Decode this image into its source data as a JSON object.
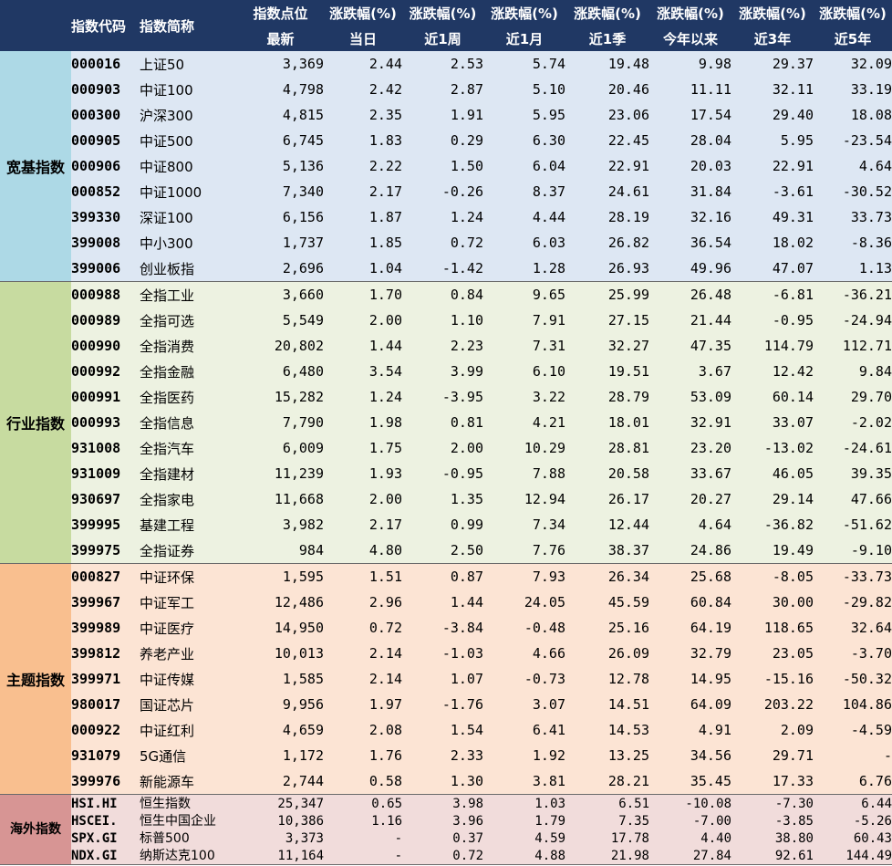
{
  "header": {
    "row1": [
      "指数代码",
      "指数简称",
      "指数点位",
      "涨跌幅(%)",
      "涨跌幅(%)",
      "涨跌幅(%)",
      "涨跌幅(%)",
      "涨跌幅(%)",
      "涨跌幅(%)",
      "涨跌幅(%)"
    ],
    "row2": [
      "最新",
      "当日",
      "近1周",
      "近1月",
      "近1季",
      "今年以来",
      "近3年",
      "近5年"
    ]
  },
  "colors": {
    "header_bg": "#203864",
    "group1_label": "#add9e6",
    "group1_row": "#dde7f3",
    "group2_label": "#c7dba0",
    "group2_row": "#edf2e1",
    "group3_label": "#f9bf8f",
    "group3_row": "#fce4d4",
    "group4_label": "#d79594",
    "group4_row": "#f1dcdb"
  },
  "groups": [
    {
      "label": "宽基指数",
      "rows": [
        [
          "000016",
          "上证50",
          "3,369",
          "2.44",
          "2.53",
          "5.74",
          "19.48",
          "9.98",
          "29.37",
          "32.09"
        ],
        [
          "000903",
          "中证100",
          "4,798",
          "2.42",
          "2.87",
          "5.10",
          "20.46",
          "11.11",
          "32.11",
          "33.19"
        ],
        [
          "000300",
          "沪深300",
          "4,815",
          "2.35",
          "1.91",
          "5.95",
          "23.06",
          "17.54",
          "29.40",
          "18.08"
        ],
        [
          "000905",
          "中证500",
          "6,745",
          "1.83",
          "0.29",
          "6.30",
          "22.45",
          "28.04",
          "5.95",
          "-23.54"
        ],
        [
          "000906",
          "中证800",
          "5,136",
          "2.22",
          "1.50",
          "6.04",
          "22.91",
          "20.03",
          "22.91",
          "4.64"
        ],
        [
          "000852",
          "中证1000",
          "7,340",
          "2.17",
          "-0.26",
          "8.37",
          "24.61",
          "31.84",
          "-3.61",
          "-30.52"
        ],
        [
          "399330",
          "深证100",
          "6,156",
          "1.87",
          "1.24",
          "4.44",
          "28.19",
          "32.16",
          "49.31",
          "33.73"
        ],
        [
          "399008",
          "中小300",
          "1,737",
          "1.85",
          "0.72",
          "6.03",
          "26.82",
          "36.54",
          "18.02",
          "-8.36"
        ],
        [
          "399006",
          "创业板指",
          "2,696",
          "1.04",
          "-1.42",
          "1.28",
          "26.93",
          "49.96",
          "47.07",
          "1.13"
        ]
      ]
    },
    {
      "label": "行业指数",
      "rows": [
        [
          "000988",
          "全指工业",
          "3,660",
          "1.70",
          "0.84",
          "9.65",
          "25.99",
          "26.48",
          "-6.81",
          "-36.21"
        ],
        [
          "000989",
          "全指可选",
          "5,549",
          "2.00",
          "1.10",
          "7.91",
          "27.15",
          "21.44",
          "-0.95",
          "-24.94"
        ],
        [
          "000990",
          "全指消费",
          "20,802",
          "1.44",
          "2.23",
          "7.31",
          "32.27",
          "47.35",
          "114.79",
          "112.71"
        ],
        [
          "000992",
          "全指金融",
          "6,480",
          "3.54",
          "3.99",
          "6.10",
          "19.51",
          "3.67",
          "12.42",
          "9.84"
        ],
        [
          "000991",
          "全指医药",
          "15,282",
          "1.24",
          "-3.95",
          "3.22",
          "28.79",
          "53.09",
          "60.14",
          "29.70"
        ],
        [
          "000993",
          "全指信息",
          "7,790",
          "1.98",
          "0.81",
          "4.21",
          "18.01",
          "32.91",
          "33.07",
          "-2.02"
        ],
        [
          "931008",
          "全指汽车",
          "6,009",
          "1.75",
          "2.00",
          "10.29",
          "28.81",
          "23.20",
          "-13.02",
          "-24.61"
        ],
        [
          "931009",
          "全指建材",
          "11,239",
          "1.93",
          "-0.95",
          "7.88",
          "20.58",
          "33.67",
          "46.05",
          "39.35"
        ],
        [
          "930697",
          "全指家电",
          "11,668",
          "2.00",
          "1.35",
          "12.94",
          "26.17",
          "20.27",
          "29.14",
          "47.66"
        ],
        [
          "399995",
          "基建工程",
          "3,982",
          "2.17",
          "0.99",
          "7.34",
          "12.44",
          "4.64",
          "-36.82",
          "-51.62"
        ],
        [
          "399975",
          "全指证券",
          "984",
          "4.80",
          "2.50",
          "7.76",
          "38.37",
          "24.86",
          "19.49",
          "-9.10"
        ]
      ]
    },
    {
      "label": "主题指数",
      "rows": [
        [
          "000827",
          "中证环保",
          "1,595",
          "1.51",
          "0.87",
          "7.93",
          "26.34",
          "25.68",
          "-8.05",
          "-33.73"
        ],
        [
          "399967",
          "中证军工",
          "12,486",
          "2.96",
          "1.44",
          "24.05",
          "45.59",
          "60.84",
          "30.00",
          "-29.82"
        ],
        [
          "399989",
          "中证医疗",
          "14,950",
          "0.72",
          "-3.84",
          "-0.48",
          "25.16",
          "64.19",
          "118.65",
          "32.64"
        ],
        [
          "399812",
          "养老产业",
          "10,013",
          "2.14",
          "-1.03",
          "4.66",
          "26.09",
          "32.79",
          "23.05",
          "-3.70"
        ],
        [
          "399971",
          "中证传媒",
          "1,585",
          "2.14",
          "1.07",
          "-0.73",
          "12.78",
          "14.95",
          "-15.16",
          "-50.32"
        ],
        [
          "980017",
          "国证芯片",
          "9,956",
          "1.97",
          "-1.76",
          "3.07",
          "14.51",
          "64.09",
          "203.22",
          "104.86"
        ],
        [
          "000922",
          "中证红利",
          "4,659",
          "2.08",
          "1.54",
          "6.41",
          "14.53",
          "4.91",
          "2.09",
          "-4.59"
        ],
        [
          "931079",
          "5G通信",
          "1,172",
          "1.76",
          "2.33",
          "1.92",
          "13.25",
          "34.56",
          "29.71",
          "-"
        ],
        [
          "399976",
          "新能源车",
          "2,744",
          "0.58",
          "1.30",
          "3.81",
          "28.21",
          "35.45",
          "17.33",
          "6.76"
        ]
      ]
    },
    {
      "label": "海外指数",
      "rows": [
        [
          "HSI.HI",
          "恒生指数",
          "25,347",
          "0.65",
          "3.98",
          "1.03",
          "6.51",
          "-10.08",
          "-7.30",
          "6.44"
        ],
        [
          "HSCEI.",
          "恒生中国企业",
          "10,386",
          "1.16",
          "3.96",
          "1.79",
          "7.35",
          "-7.00",
          "-3.85",
          "-5.26"
        ],
        [
          "SPX.GI",
          "标普500",
          "3,373",
          "-",
          "0.37",
          "4.59",
          "17.78",
          "4.40",
          "38.80",
          "60.43"
        ],
        [
          "NDX.GI",
          "纳斯达克100",
          "11,164",
          "-",
          "0.72",
          "4.88",
          "21.98",
          "27.84",
          "92.61",
          "144.49"
        ]
      ]
    }
  ]
}
